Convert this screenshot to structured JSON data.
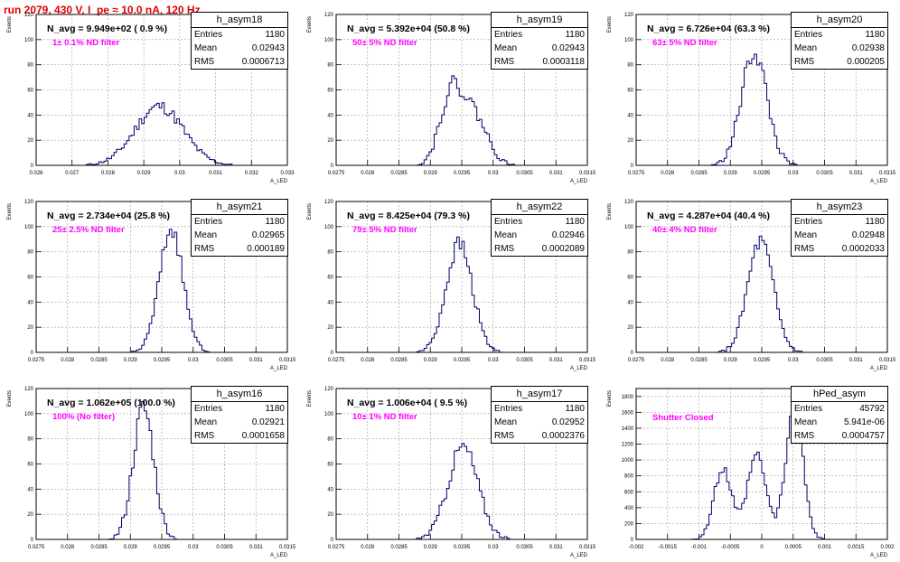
{
  "title": "run 2079,   430 V, I_pe ≈ 10.0 nA, 120 Hz",
  "stat_labels": {
    "entries": "Entries",
    "mean": "Mean",
    "rms": "RMS"
  },
  "colors": {
    "histogram": "#00006a",
    "title": "#e00000",
    "filter": "#ff00ff",
    "grid": "#9a9a9a"
  },
  "chart_data": [
    {
      "type": "histogram",
      "name": "h_asym18",
      "ylabel": "Events",
      "xlabel": "A_LED",
      "n_avg": "N_avg = 9.949e+02 ( 0.9 %)",
      "filter": "1± 0.1% ND filter",
      "entries": "1180",
      "mean": "0.02943",
      "rms": "0.0006713",
      "xlim": [
        0.026,
        0.033
      ],
      "ylim": [
        0,
        120
      ],
      "xticks": [
        "0.026",
        "0.027",
        "0.028",
        "0.029",
        "0.03",
        "0.031",
        "0.032",
        "0.033"
      ],
      "yticks": [
        "0",
        "20",
        "40",
        "60",
        "80",
        "100",
        "120"
      ],
      "gauss": [
        {
          "mu": 0.02943,
          "sigma": 0.00067,
          "amp": 47
        }
      ],
      "noise": 5,
      "seed": 11,
      "bins": 100
    },
    {
      "type": "histogram",
      "name": "h_asym19",
      "ylabel": "Events",
      "xlabel": "A_LED",
      "n_avg": "N_avg = 5.392e+04 (50.8 %)",
      "filter": "50± 5% ND filter",
      "entries": "1180",
      "mean": "0.02943",
      "rms": "0.0003118",
      "xlim": [
        0.0275,
        0.0315
      ],
      "ylim": [
        0,
        120
      ],
      "xticks": [
        "0.0275",
        "0.028",
        "0.0285",
        "0.029",
        "0.0295",
        "0.03",
        "0.0305",
        "0.031",
        "0.0315"
      ],
      "yticks": [
        "0",
        "20",
        "40",
        "60",
        "80",
        "100",
        "120"
      ],
      "gauss": [
        {
          "mu": 0.02932,
          "sigma": 0.00018,
          "amp": 52
        },
        {
          "mu": 0.02968,
          "sigma": 0.00022,
          "amp": 40
        }
      ],
      "noise": 6,
      "seed": 22,
      "bins": 100
    },
    {
      "type": "histogram",
      "name": "h_asym20",
      "ylabel": "Events",
      "xlabel": "A_LED",
      "n_avg": "N_avg = 6.726e+04 (63.3 %)",
      "filter": "63± 5% ND filter",
      "entries": "1180",
      "mean": "0.02938",
      "rms": "0.000205",
      "xlim": [
        0.0275,
        0.0315
      ],
      "ylim": [
        0,
        120
      ],
      "xticks": [
        "0.0275",
        "0.028",
        "0.0285",
        "0.029",
        "0.0295",
        "0.03",
        "0.0305",
        "0.031",
        "0.0315"
      ],
      "yticks": [
        "0",
        "20",
        "40",
        "60",
        "80",
        "100",
        "120"
      ],
      "gauss": [
        {
          "mu": 0.02938,
          "sigma": 0.000205,
          "amp": 90
        }
      ],
      "noise": 8,
      "seed": 33,
      "bins": 100
    },
    {
      "type": "histogram",
      "name": "h_asym21",
      "ylabel": "Events",
      "xlabel": "A_LED",
      "n_avg": "N_avg = 2.734e+04 (25.8 %)",
      "filter": "25± 2.5% ND filter",
      "entries": "1180",
      "mean": "0.02965",
      "rms": "0.000189",
      "xlim": [
        0.0275,
        0.0315
      ],
      "ylim": [
        0,
        120
      ],
      "xticks": [
        "0.0275",
        "0.028",
        "0.0285",
        "0.029",
        "0.0295",
        "0.03",
        "0.0305",
        "0.031",
        "0.0315"
      ],
      "yticks": [
        "0",
        "20",
        "40",
        "60",
        "80",
        "100",
        "120"
      ],
      "gauss": [
        {
          "mu": 0.02965,
          "sigma": 0.000189,
          "amp": 98
        }
      ],
      "noise": 6,
      "seed": 44,
      "bins": 100
    },
    {
      "type": "histogram",
      "name": "h_asym22",
      "ylabel": "Events",
      "xlabel": "A_LED",
      "n_avg": "N_avg = 8.425e+04 (79.3 %)",
      "filter": "79± 5% ND filter",
      "entries": "1180",
      "mean": "0.02946",
      "rms": "0.0002089",
      "xlim": [
        0.0275,
        0.0315
      ],
      "ylim": [
        0,
        120
      ],
      "xticks": [
        "0.0275",
        "0.028",
        "0.0285",
        "0.029",
        "0.0295",
        "0.03",
        "0.0305",
        "0.031",
        "0.0315"
      ],
      "yticks": [
        "0",
        "20",
        "40",
        "60",
        "80",
        "100",
        "120"
      ],
      "gauss": [
        {
          "mu": 0.02946,
          "sigma": 0.000209,
          "amp": 86
        }
      ],
      "noise": 7,
      "seed": 55,
      "bins": 100
    },
    {
      "type": "histogram",
      "name": "h_asym23",
      "ylabel": "Events",
      "xlabel": "A_LED",
      "n_avg": "N_avg = 4.287e+04 (40.4 %)",
      "filter": "40± 4% ND filter",
      "entries": "1180",
      "mean": "0.02948",
      "rms": "0.0002033",
      "xlim": [
        0.0275,
        0.0315
      ],
      "ylim": [
        0,
        120
      ],
      "xticks": [
        "0.0275",
        "0.028",
        "0.0285",
        "0.029",
        "0.0295",
        "0.03",
        "0.0305",
        "0.031",
        "0.0315"
      ],
      "yticks": [
        "0",
        "20",
        "40",
        "60",
        "80",
        "100",
        "120"
      ],
      "gauss": [
        {
          "mu": 0.02948,
          "sigma": 0.000203,
          "amp": 88
        }
      ],
      "noise": 7,
      "seed": 66,
      "bins": 100
    },
    {
      "type": "histogram",
      "name": "h_asym16",
      "ylabel": "Events",
      "xlabel": "A_LED",
      "n_avg": "N_avg = 1.062e+05 (100.0 %)",
      "filter": "100% (No filter)",
      "entries": "1180",
      "mean": "0.02921",
      "rms": "0.0001658",
      "xlim": [
        0.0275,
        0.0315
      ],
      "ylim": [
        0,
        120
      ],
      "xticks": [
        "0.0275",
        "0.028",
        "0.0285",
        "0.029",
        "0.0295",
        "0.03",
        "0.0305",
        "0.031",
        "0.0315"
      ],
      "yticks": [
        "0",
        "20",
        "40",
        "60",
        "80",
        "100",
        "120"
      ],
      "gauss": [
        {
          "mu": 0.02921,
          "sigma": 0.000166,
          "amp": 104
        }
      ],
      "noise": 9,
      "seed": 77,
      "bins": 100
    },
    {
      "type": "histogram",
      "name": "h_asym17",
      "ylabel": "Events",
      "xlabel": "A_LED",
      "n_avg": "N_avg = 1.006e+04 ( 9.5 %)",
      "filter": "10± 1% ND filter",
      "entries": "1180",
      "mean": "0.02952",
      "rms": "0.0002376",
      "xlim": [
        0.0275,
        0.0315
      ],
      "ylim": [
        0,
        120
      ],
      "xticks": [
        "0.0275",
        "0.028",
        "0.0285",
        "0.029",
        "0.0295",
        "0.03",
        "0.0305",
        "0.031",
        "0.0315"
      ],
      "yticks": [
        "0",
        "20",
        "40",
        "60",
        "80",
        "100",
        "120"
      ],
      "gauss": [
        {
          "mu": 0.02952,
          "sigma": 0.000238,
          "amp": 74
        }
      ],
      "noise": 7,
      "seed": 88,
      "bins": 100
    },
    {
      "type": "histogram",
      "name": "hPed_asym",
      "ylabel": "Events",
      "xlabel": "A_LED",
      "n_avg": "",
      "filter": "Shutter Closed",
      "entries": "45792",
      "mean": "5.941e-06",
      "rms": "0.0004757",
      "xlim": [
        -0.002,
        0.002
      ],
      "ylim": [
        0,
        1900
      ],
      "xticks": [
        "-0.002",
        "-0.0015",
        "-0.001",
        "-0.0005",
        "0",
        "0.0005",
        "0.001",
        "0.0015",
        "0.002"
      ],
      "yticks": [
        "0",
        "200",
        "400",
        "600",
        "800",
        "1000",
        "1200",
        "1400",
        "1600",
        "1800"
      ],
      "gauss": [
        {
          "mu": -0.00062,
          "sigma": 0.00014,
          "amp": 880
        },
        {
          "mu": -8e-05,
          "sigma": 0.00015,
          "amp": 1050
        },
        {
          "mu": 0.00052,
          "sigma": 0.00014,
          "amp": 1620
        }
      ],
      "noise": 70,
      "seed": 99,
      "bins": 100
    }
  ]
}
